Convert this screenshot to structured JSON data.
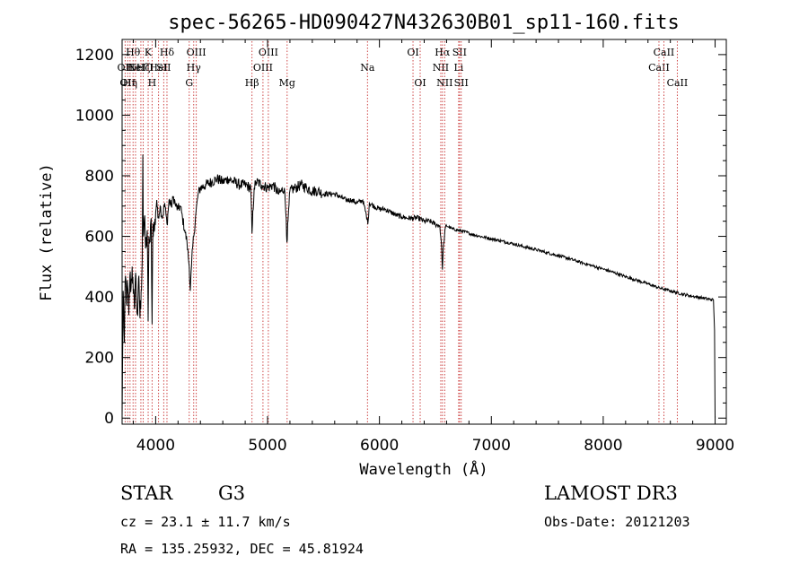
{
  "chart_data": {
    "type": "line",
    "title": "spec-56265-HD090427N432630B01_sp11-160.fits",
    "xlabel": "Wavelength (Å)",
    "ylabel": "Flux (relative)",
    "xlim": [
      3700,
      9100
    ],
    "ylim": [
      -20,
      1250
    ],
    "xticks": [
      4000,
      5000,
      6000,
      7000,
      8000,
      9000
    ],
    "yticks": [
      0,
      200,
      400,
      600,
      800,
      1000,
      1200
    ],
    "colors": {
      "line": "#000000",
      "marker": "#c83232"
    },
    "spectrum_nodes": [
      [
        3700,
        0
      ],
      [
        3710,
        420
      ],
      [
        3720,
        250
      ],
      [
        3730,
        470
      ],
      [
        3740,
        380
      ],
      [
        3750,
        440
      ],
      [
        3760,
        340
      ],
      [
        3770,
        470
      ],
      [
        3780,
        430
      ],
      [
        3790,
        500
      ],
      [
        3800,
        410
      ],
      [
        3810,
        360
      ],
      [
        3820,
        480
      ],
      [
        3830,
        380
      ],
      [
        3840,
        340
      ],
      [
        3850,
        470
      ],
      [
        3860,
        330
      ],
      [
        3870,
        420
      ],
      [
        3880,
        520
      ],
      [
        3885,
        870
      ],
      [
        3890,
        600
      ],
      [
        3900,
        660
      ],
      [
        3910,
        560
      ],
      [
        3925,
        620
      ],
      [
        3933,
        320
      ],
      [
        3940,
        600
      ],
      [
        3950,
        580
      ],
      [
        3960,
        660
      ],
      [
        3968,
        310
      ],
      [
        3975,
        640
      ],
      [
        3990,
        620
      ],
      [
        4000,
        680
      ],
      [
        4010,
        720
      ],
      [
        4020,
        660
      ],
      [
        4040,
        700
      ],
      [
        4060,
        660
      ],
      [
        4080,
        710
      ],
      [
        4101,
        640
      ],
      [
        4120,
        720
      ],
      [
        4140,
        700
      ],
      [
        4160,
        730
      ],
      [
        4180,
        700
      ],
      [
        4200,
        690
      ],
      [
        4220,
        700
      ],
      [
        4240,
        660
      ],
      [
        4260,
        620
      ],
      [
        4280,
        580
      ],
      [
        4300,
        500
      ],
      [
        4310,
        420
      ],
      [
        4320,
        500
      ],
      [
        4330,
        560
      ],
      [
        4340,
        600
      ],
      [
        4360,
        680
      ],
      [
        4380,
        740
      ],
      [
        4400,
        760
      ],
      [
        4450,
        770
      ],
      [
        4500,
        780
      ],
      [
        4550,
        790
      ],
      [
        4600,
        780
      ],
      [
        4650,
        790
      ],
      [
        4700,
        780
      ],
      [
        4750,
        770
      ],
      [
        4800,
        770
      ],
      [
        4850,
        760
      ],
      [
        4861,
        610
      ],
      [
        4880,
        760
      ],
      [
        4900,
        780
      ],
      [
        4950,
        770
      ],
      [
        5000,
        760
      ],
      [
        5050,
        770
      ],
      [
        5100,
        740
      ],
      [
        5150,
        760
      ],
      [
        5167,
        660
      ],
      [
        5173,
        580
      ],
      [
        5183,
        650
      ],
      [
        5200,
        750
      ],
      [
        5250,
        760
      ],
      [
        5300,
        770
      ],
      [
        5350,
        760
      ],
      [
        5400,
        750
      ],
      [
        5450,
        750
      ],
      [
        5500,
        740
      ],
      [
        5550,
        740
      ],
      [
        5600,
        740
      ],
      [
        5650,
        730
      ],
      [
        5700,
        720
      ],
      [
        5750,
        720
      ],
      [
        5800,
        710
      ],
      [
        5850,
        720
      ],
      [
        5890,
        660
      ],
      [
        5896,
        640
      ],
      [
        5910,
        710
      ],
      [
        5950,
        700
      ],
      [
        6000,
        690
      ],
      [
        6050,
        690
      ],
      [
        6100,
        680
      ],
      [
        6150,
        670
      ],
      [
        6200,
        665
      ],
      [
        6250,
        660
      ],
      [
        6300,
        660
      ],
      [
        6350,
        660
      ],
      [
        6400,
        650
      ],
      [
        6450,
        650
      ],
      [
        6500,
        640
      ],
      [
        6540,
        635
      ],
      [
        6556,
        560
      ],
      [
        6563,
        490
      ],
      [
        6570,
        560
      ],
      [
        6590,
        630
      ],
      [
        6600,
        635
      ],
      [
        6650,
        625
      ],
      [
        6700,
        620
      ],
      [
        6750,
        617
      ],
      [
        6800,
        610
      ],
      [
        6900,
        600
      ],
      [
        7000,
        592
      ],
      [
        7100,
        584
      ],
      [
        7200,
        575
      ],
      [
        7300,
        565
      ],
      [
        7400,
        556
      ],
      [
        7500,
        546
      ],
      [
        7600,
        536
      ],
      [
        7700,
        526
      ],
      [
        7800,
        514
      ],
      [
        7900,
        503
      ],
      [
        8000,
        492
      ],
      [
        8100,
        480
      ],
      [
        8200,
        467
      ],
      [
        8300,
        455
      ],
      [
        8400,
        443
      ],
      [
        8500,
        430
      ],
      [
        8600,
        420
      ],
      [
        8700,
        410
      ],
      [
        8800,
        402
      ],
      [
        8900,
        396
      ],
      [
        8950,
        392
      ],
      [
        8985,
        390
      ],
      [
        8995,
        290
      ],
      [
        9000,
        0
      ]
    ],
    "line_markers": [
      {
        "x": 3727,
        "label": "OII",
        "row": 1
      },
      {
        "x": 3750,
        "label": "OII",
        "row": 2
      },
      {
        "x": 3771,
        "label": "Hη",
        "row": 2
      },
      {
        "x": 3798,
        "label": "Hθ",
        "row": 0
      },
      {
        "x": 3820,
        "label": "HeI",
        "row": 1
      },
      {
        "x": 3868,
        "label": "NeIII",
        "row": 1
      },
      {
        "x": 3889,
        "label": "Hζ",
        "row": 1
      },
      {
        "x": 3933,
        "label": "K",
        "row": 0
      },
      {
        "x": 3968,
        "label": "H",
        "row": 2
      },
      {
        "x": 4026,
        "label": "HeI",
        "row": 1
      },
      {
        "x": 4072,
        "label": "SII",
        "row": 1
      },
      {
        "x": 4101,
        "label": "Hδ",
        "row": 0
      },
      {
        "x": 4300,
        "label": "G",
        "row": 2
      },
      {
        "x": 4340,
        "label": "Hγ",
        "row": 1
      },
      {
        "x": 4363,
        "label": "OIII",
        "row": 0
      },
      {
        "x": 4861,
        "label": "Hβ",
        "row": 2
      },
      {
        "x": 4959,
        "label": "OIII",
        "row": 1
      },
      {
        "x": 5007,
        "label": "OIII",
        "row": 0
      },
      {
        "x": 5175,
        "label": "Mg",
        "row": 2
      },
      {
        "x": 5893,
        "label": "Na",
        "row": 1
      },
      {
        "x": 6300,
        "label": "OI",
        "row": 0
      },
      {
        "x": 6364,
        "label": "OI",
        "row": 2
      },
      {
        "x": 6548,
        "label": "NII",
        "row": 1
      },
      {
        "x": 6563,
        "label": "Hα",
        "row": 0
      },
      {
        "x": 6583,
        "label": "NII",
        "row": 2
      },
      {
        "x": 6708,
        "label": "Li",
        "row": 1
      },
      {
        "x": 6716,
        "label": "SII",
        "row": 0
      },
      {
        "x": 6731,
        "label": "SII",
        "row": 2
      },
      {
        "x": 8498,
        "label": "CaII",
        "row": 1
      },
      {
        "x": 8542,
        "label": "CaII",
        "row": 0
      },
      {
        "x": 8662,
        "label": "CaII",
        "row": 2
      }
    ]
  },
  "info": {
    "object_class": "STAR",
    "subclass": "G3",
    "survey": "LAMOST DR3",
    "redshift": "cz = 23.1 ± 11.7 km/s",
    "obs_date": "Obs-Date: 20121203",
    "coords": "RA = 135.25932, DEC =  45.81924"
  }
}
